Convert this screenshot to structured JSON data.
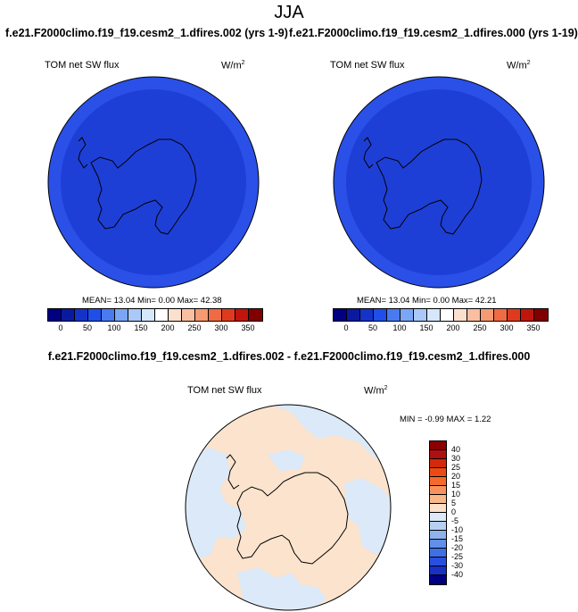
{
  "title": "JJA",
  "panels": [
    {
      "case": "f.e21.F2000climo.f19_f19.cesm2_1.dfires.002 (yrs 1-9)",
      "variable": "TOM net SW flux",
      "units": "W/m",
      "units_sup": "2",
      "stats": "MEAN= 13.04 Min= 0.00 Max= 42.38"
    },
    {
      "case": "f.e21.F2000climo.f19_f19.cesm2_1.dfires.000 (yrs 1-19)",
      "variable": "TOM net SW flux",
      "units": "W/m",
      "units_sup": "2",
      "stats": "MEAN= 13.04 Min= 0.00 Max= 42.21"
    }
  ],
  "diff": {
    "title": "f.e21.F2000climo.f19_f19.cesm2_1.dfires.002 - f.e21.F2000climo.f19_f19.cesm2_1.dfires.000",
    "variable": "TOM net SW flux",
    "units": "W/m",
    "units_sup": "2",
    "stats": "MIN = -0.99 MAX = 1.22"
  },
  "colorbar_abs": {
    "colors": [
      "#000080",
      "#0a1aa0",
      "#1433c8",
      "#1f4fe8",
      "#4a7af0",
      "#7aa6f5",
      "#aac8f8",
      "#d6e6fb",
      "#ffffff",
      "#fce0cf",
      "#f9bfa0",
      "#f59a72",
      "#ee6b44",
      "#e03a1e",
      "#c0150c",
      "#800000"
    ],
    "ticks": [
      "0",
      "50",
      "100",
      "150",
      "200",
      "250",
      "300",
      "350"
    ]
  },
  "colorbar_diff": {
    "colors": [
      "#8b0000",
      "#b00f0f",
      "#d42a0c",
      "#ec4a12",
      "#f56a2a",
      "#f7935a",
      "#f9b88a",
      "#fbe0cc",
      "#dce9f8",
      "#b7d0f2",
      "#8fb2ec",
      "#6090e8",
      "#3f6fe6",
      "#2a4fe0",
      "#1a2fc8",
      "#000080"
    ],
    "ticks": [
      "40",
      "30",
      "25",
      "20",
      "15",
      "10",
      "5",
      "0",
      "-5",
      "-10",
      "-15",
      "-20",
      "-25",
      "-30",
      "-40"
    ]
  },
  "colors": {
    "outer_ring": "#2a50e8",
    "inner_field": "#1e3fd6",
    "diff_positive": "#fbe3cd",
    "diff_negative": "#dbe9f8"
  }
}
